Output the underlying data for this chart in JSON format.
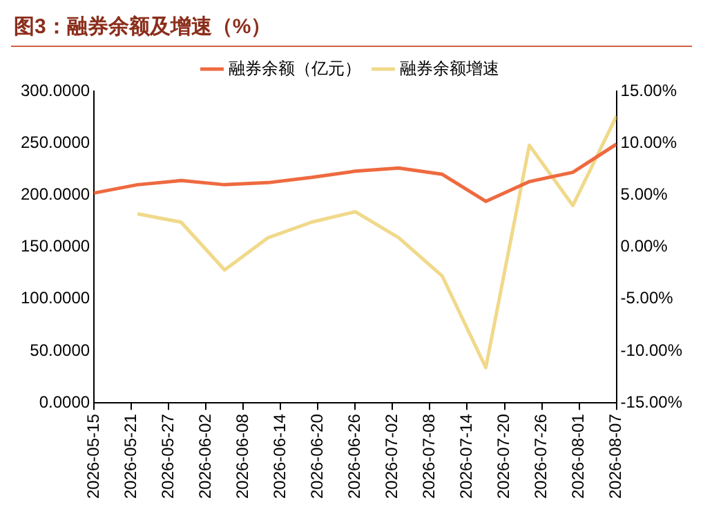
{
  "chart_data": {
    "type": "line",
    "title": "图3：融券余额及增速（%）",
    "x": [
      "2026-05-15",
      "2026-05-22",
      "2026-05-29",
      "2026-06-05",
      "2026-06-12",
      "2026-06-19",
      "2026-06-26",
      "2026-07-03",
      "2026-07-10",
      "2026-07-17",
      "2026-07-24",
      "2026-07-31",
      "2026-08-07"
    ],
    "series": [
      {
        "name": "融券余额（亿元）",
        "color": "#ee6a3f",
        "values": [
          202,
          210,
          214,
          210,
          212,
          217,
          223,
          226,
          220,
          194,
          213,
          222,
          249
        ]
      },
      {
        "name": "融券余额增速",
        "color": "#f0d98a",
        "axis": "y2",
        "values": [
          null,
          3.2,
          2.4,
          -2.2,
          0.9,
          2.4,
          3.4,
          0.9,
          -2.8,
          -11.6,
          9.8,
          4.0,
          12.6
        ]
      }
    ],
    "xlim": [
      "2026-05-15",
      "2026-08-07"
    ],
    "xticks": [
      "2026-05-15",
      "2026-05-21",
      "2026-05-27",
      "2026-06-02",
      "2026-06-08",
      "2026-06-14",
      "2026-06-20",
      "2026-06-26",
      "2026-07-02",
      "2026-07-08",
      "2026-07-14",
      "2026-07-20",
      "2026-07-26",
      "2026-08-01",
      "2026-08-07"
    ],
    "ylim": [
      0,
      300
    ],
    "yticks": [
      {
        "value": 0,
        "label": "0.0000"
      },
      {
        "value": 50,
        "label": "50.0000"
      },
      {
        "value": 100,
        "label": "100.0000"
      },
      {
        "value": 150,
        "label": "150.0000"
      },
      {
        "value": 200,
        "label": "200.0000"
      },
      {
        "value": 250,
        "label": "250.0000"
      },
      {
        "value": 300,
        "label": "300.0000"
      }
    ],
    "y2lim": [
      -15,
      15
    ],
    "y2ticks": [
      {
        "value": -15,
        "label": "-15.00%"
      },
      {
        "value": -10,
        "label": "-10.00%"
      },
      {
        "value": -5,
        "label": "-5.00%"
      },
      {
        "value": 0,
        "label": "0.00%"
      },
      {
        "value": 5,
        "label": "5.00%"
      },
      {
        "value": 10,
        "label": "10.00%"
      },
      {
        "value": 15,
        "label": "15.00%"
      }
    ],
    "legend": "top",
    "marker": "none",
    "line_style": "solid"
  }
}
